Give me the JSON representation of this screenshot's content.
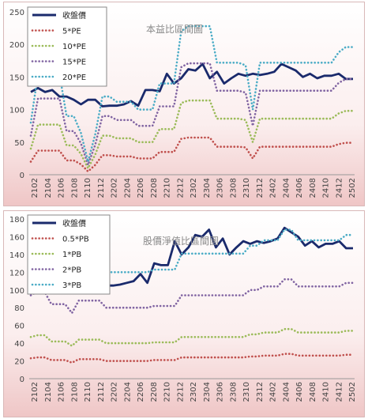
{
  "chart_data": [
    {
      "type": "line",
      "title": "本益比區間圖",
      "xlabel": "",
      "ylabel": "",
      "ylim": [
        0,
        250
      ],
      "yticks": [
        0,
        50,
        100,
        150,
        200,
        250
      ],
      "grid": false,
      "legend": "top-left",
      "x_labels": [
        "2102",
        "2104",
        "2106",
        "2108",
        "2110",
        "2112",
        "2202",
        "2204",
        "2206",
        "2208",
        "2210",
        "2212",
        "2302",
        "2304",
        "2306",
        "2308",
        "2310",
        "2312",
        "2402",
        "2404",
        "2406",
        "2408",
        "2410",
        "2412",
        "2502"
      ],
      "series": [
        {
          "name": "收盤價",
          "color": "#1a2a6c",
          "style": "solid",
          "values": [
            127,
            133,
            127,
            130,
            120,
            120,
            115,
            108,
            115,
            115,
            105,
            106,
            106,
            108,
            113,
            106,
            130,
            130,
            128,
            155,
            140,
            148,
            162,
            160,
            170,
            148,
            158,
            140,
            148,
            155,
            152,
            155,
            153,
            155,
            158,
            170,
            165,
            160,
            150,
            155,
            148,
            152,
            152,
            155,
            147,
            147
          ]
        },
        {
          "name": "5*PE",
          "color": "#c0504d",
          "style": "dotted",
          "values": [
            20,
            37,
            37,
            37,
            37,
            22,
            22,
            16,
            5,
            15,
            30,
            30,
            28,
            28,
            28,
            25,
            25,
            25,
            35,
            35,
            35,
            55,
            57,
            57,
            57,
            57,
            43,
            43,
            43,
            43,
            42,
            25,
            43,
            43,
            43,
            43,
            43,
            43,
            43,
            43,
            43,
            43,
            43,
            47,
            49,
            49
          ]
        },
        {
          "name": "10*PE",
          "color": "#9bbb59",
          "style": "dotted",
          "values": [
            40,
            77,
            77,
            77,
            77,
            45,
            45,
            32,
            10,
            31,
            60,
            60,
            56,
            56,
            56,
            50,
            50,
            50,
            70,
            70,
            70,
            110,
            114,
            114,
            114,
            114,
            86,
            86,
            86,
            86,
            84,
            50,
            86,
            86,
            86,
            86,
            86,
            86,
            86,
            86,
            86,
            86,
            86,
            94,
            98,
            98
          ]
        },
        {
          "name": "15*PE",
          "color": "#8064a2",
          "style": "dotted",
          "values": [
            60,
            117,
            117,
            117,
            117,
            67,
            67,
            48,
            15,
            46,
            90,
            90,
            84,
            84,
            84,
            75,
            75,
            75,
            105,
            105,
            105,
            165,
            171,
            171,
            171,
            171,
            129,
            129,
            129,
            129,
            126,
            75,
            129,
            129,
            129,
            129,
            129,
            129,
            129,
            129,
            129,
            129,
            129,
            141,
            147,
            147
          ]
        },
        {
          "name": "20*PE",
          "color": "#4bacc6",
          "style": "dotted",
          "values": [
            80,
            155,
            155,
            155,
            155,
            90,
            90,
            64,
            20,
            62,
            120,
            120,
            112,
            112,
            112,
            100,
            100,
            100,
            140,
            140,
            140,
            220,
            228,
            228,
            228,
            228,
            172,
            172,
            172,
            172,
            168,
            100,
            172,
            172,
            172,
            172,
            172,
            172,
            172,
            172,
            172,
            172,
            172,
            188,
            196,
            196
          ]
        }
      ]
    },
    {
      "type": "line",
      "title": "股價淨值比區間圖",
      "xlabel": "",
      "ylabel": "",
      "ylim": [
        0,
        180
      ],
      "yticks": [
        0,
        20,
        40,
        60,
        80,
        100,
        120,
        140,
        160,
        180
      ],
      "grid": false,
      "legend": "top-left",
      "x_labels": [
        "2102",
        "2104",
        "2106",
        "2108",
        "2110",
        "2112",
        "2202",
        "2204",
        "2206",
        "2208",
        "2210",
        "2212",
        "2302",
        "2304",
        "2306",
        "2308",
        "2310",
        "2312",
        "2402",
        "2404",
        "2406",
        "2408",
        "2410",
        "2412",
        "2502"
      ],
      "series": [
        {
          "name": "收盤價",
          "color": "#1a2a6c",
          "style": "solid",
          "values": [
            127,
            133,
            127,
            130,
            120,
            120,
            115,
            108,
            115,
            115,
            105,
            105,
            105,
            106,
            108,
            110,
            118,
            108,
            130,
            128,
            128,
            155,
            140,
            148,
            162,
            160,
            168,
            148,
            158,
            140,
            148,
            155,
            152,
            155,
            153,
            155,
            158,
            170,
            165,
            160,
            150,
            155,
            148,
            152,
            152,
            155,
            147,
            147
          ]
        },
        {
          "name": "0.5*PB",
          "color": "#c0504d",
          "style": "dotted",
          "values": [
            23,
            24,
            24,
            21,
            21,
            21,
            18,
            22,
            22,
            22,
            22,
            20,
            20,
            20,
            20,
            20,
            20,
            20,
            21,
            21,
            21,
            21,
            24,
            24,
            24,
            24,
            24,
            24,
            24,
            24,
            24,
            24,
            25,
            25,
            26,
            26,
            26,
            28,
            28,
            26,
            26,
            26,
            26,
            26,
            26,
            26,
            27,
            27
          ]
        },
        {
          "name": "1*PB",
          "color": "#9bbb59",
          "style": "dotted",
          "values": [
            47,
            49,
            49,
            42,
            42,
            42,
            37,
            44,
            44,
            44,
            44,
            40,
            40,
            40,
            40,
            40,
            40,
            40,
            41,
            41,
            41,
            41,
            47,
            47,
            47,
            47,
            47,
            47,
            47,
            47,
            47,
            47,
            50,
            50,
            52,
            52,
            52,
            56,
            56,
            52,
            52,
            52,
            52,
            52,
            52,
            52,
            54,
            54
          ]
        },
        {
          "name": "2*PB",
          "color": "#8064a2",
          "style": "dotted",
          "values": [
            94,
            98,
            98,
            84,
            84,
            84,
            74,
            88,
            88,
            88,
            88,
            80,
            80,
            80,
            80,
            80,
            80,
            80,
            82,
            82,
            82,
            82,
            94,
            94,
            94,
            94,
            94,
            94,
            94,
            94,
            94,
            94,
            100,
            100,
            104,
            104,
            104,
            112,
            112,
            104,
            104,
            104,
            104,
            104,
            104,
            104,
            108,
            108
          ]
        },
        {
          "name": "3*PB",
          "color": "#4bacc6",
          "style": "dotted",
          "values": [
            141,
            147,
            147,
            126,
            126,
            126,
            111,
            132,
            132,
            132,
            132,
            120,
            120,
            120,
            120,
            120,
            120,
            120,
            123,
            123,
            123,
            123,
            141,
            141,
            141,
            141,
            141,
            141,
            141,
            141,
            141,
            141,
            150,
            150,
            156,
            156,
            156,
            168,
            168,
            156,
            156,
            156,
            156,
            156,
            156,
            156,
            162,
            162
          ]
        }
      ]
    }
  ]
}
